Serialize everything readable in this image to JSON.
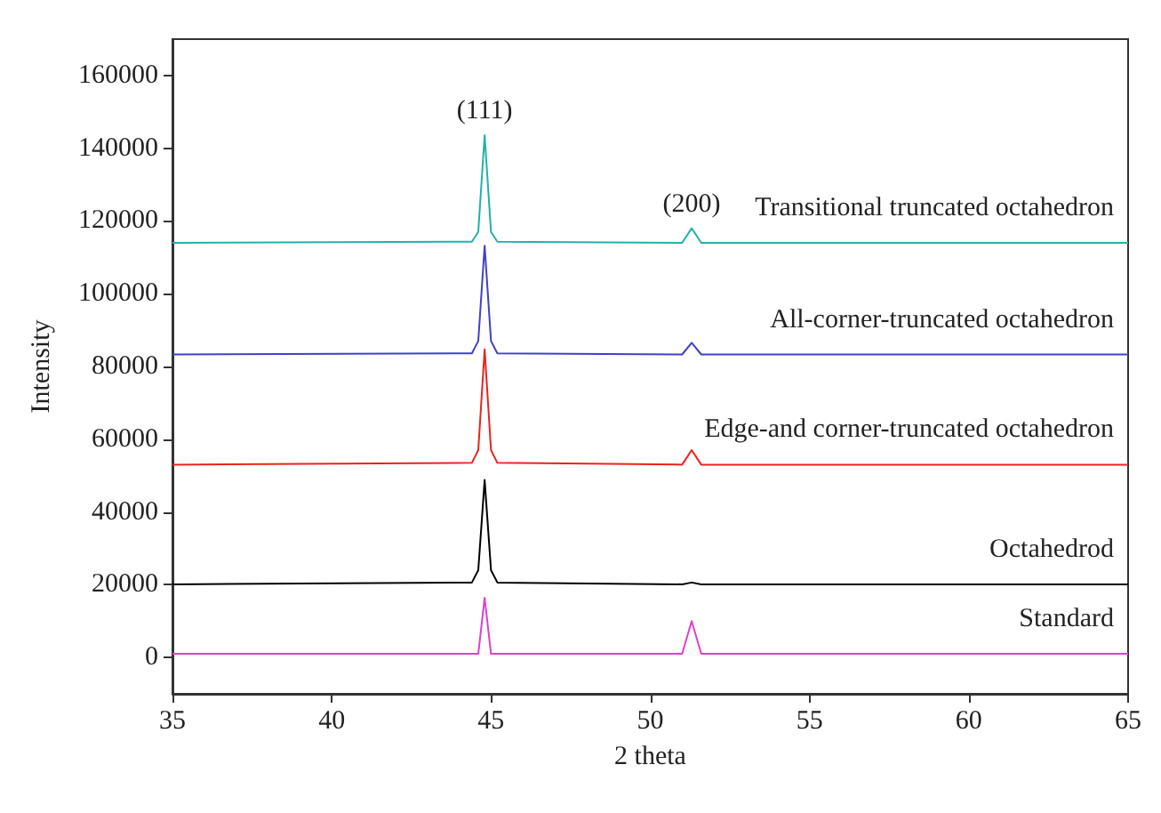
{
  "chart_data": {
    "type": "line",
    "xlabel": "2 theta",
    "ylabel": "Intensity",
    "xlim": [
      35,
      65
    ],
    "xticks": [
      35,
      40,
      45,
      50,
      55,
      60,
      65
    ],
    "ylim": [
      -10000,
      170000
    ],
    "yticks": [
      0,
      20000,
      40000,
      60000,
      80000,
      100000,
      120000,
      140000,
      160000
    ],
    "grid": false,
    "legend": false,
    "marker": "none",
    "line_style": "solid",
    "annotations": [
      "(111)",
      "(200)"
    ],
    "x": [
      35,
      44.4,
      44.6,
      44.8,
      45.0,
      45.2,
      51.0,
      51.3,
      51.6,
      65
    ],
    "series": [
      {
        "name": "Transitional truncated octahedron",
        "color": "#20b2aa",
        "values": [
          114000,
          114300,
          117000,
          143600,
          117000,
          114300,
          114000,
          118000,
          114000,
          114000
        ]
      },
      {
        "name": "All-corner-truncated octahedron",
        "color": "#4040c8",
        "values": [
          83300,
          83600,
          87000,
          113200,
          87000,
          83600,
          83300,
          86500,
          83300,
          83300
        ]
      },
      {
        "name": "Edge-and corner-truncated octahedron",
        "color": "#e8231e",
        "values": [
          53000,
          53500,
          57000,
          84700,
          57000,
          53500,
          53000,
          57000,
          53000,
          53000
        ]
      },
      {
        "name": "Octahedrod",
        "color": "#000000",
        "values": [
          20100,
          20600,
          24000,
          48800,
          24000,
          20600,
          20100,
          20600,
          20100,
          20100
        ]
      },
      {
        "name": "Standard",
        "color": "#e040c8",
        "values": [
          1000,
          1000,
          1000,
          16400,
          1000,
          1000,
          1000,
          10000,
          1000,
          1000
        ]
      }
    ]
  }
}
